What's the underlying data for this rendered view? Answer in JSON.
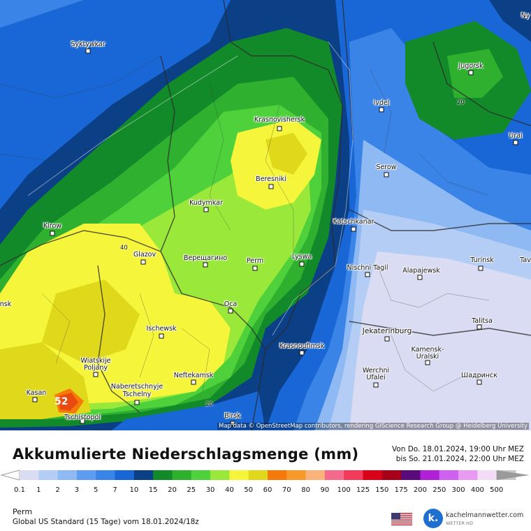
{
  "map": {
    "cities": [
      {
        "name": "Syktywkar"
      },
      {
        "name": "Jugorsk"
      },
      {
        "name": "Ivdel"
      },
      {
        "name": "Krasnovishersk"
      },
      {
        "name": "Urai"
      },
      {
        "name": "Serow"
      },
      {
        "name": "Beresniki"
      },
      {
        "name": "Kudymkar"
      },
      {
        "name": "Katschkanar"
      },
      {
        "name": "Kirow"
      },
      {
        "name": "Glazov"
      },
      {
        "name": "Верещагино"
      },
      {
        "name": "Perm"
      },
      {
        "name": "Lyswa"
      },
      {
        "name": "Nischni Tagil"
      },
      {
        "name": "Alapajewsk"
      },
      {
        "name": "Turinsk"
      },
      {
        "name": "Оса"
      },
      {
        "name": "Talitsa"
      },
      {
        "name": "Ischewsk"
      },
      {
        "name": "Jekaterinburg"
      },
      {
        "name": "Krasnoufimsk"
      },
      {
        "name": "Kamensk-Uralski"
      },
      {
        "name": "Wiatskije Poljany"
      },
      {
        "name": "Neftekamsk"
      },
      {
        "name": "Werchni Ufalei"
      },
      {
        "name": "Шадринск"
      },
      {
        "name": "Naberetschnyje Tschelny"
      },
      {
        "name": "Kasan"
      },
      {
        "name": "Tschistopol"
      },
      {
        "name": "Birsk"
      },
      {
        "name": "Ny"
      },
      {
        "name": "Tav"
      },
      {
        "name": "nsk"
      }
    ],
    "contour_values": [
      "40",
      "20",
      "20"
    ],
    "max_value": "52",
    "credit": "Map data © OpenStreetMap contributors, rendering GIScience Research Group @ Heidelberg University"
  },
  "legend": {
    "title": "Akkumulierte Niederschlagsmenge (mm)",
    "period_from": "Von Do. 18.01.2024, 19:00 Uhr MEZ",
    "period_to": "bis So. 21.01.2024, 22:00 Uhr MEZ",
    "ticks": [
      "0.1",
      "1",
      "2",
      "3",
      "5",
      "7",
      "10",
      "15",
      "20",
      "25",
      "30",
      "40",
      "50",
      "60",
      "70",
      "80",
      "90",
      "100",
      "125",
      "150",
      "175",
      "200",
      "250",
      "300",
      "400",
      "500"
    ],
    "colors": [
      "#d9dcf2",
      "#b4cdf5",
      "#8fb9f2",
      "#5d9cee",
      "#3a84e8",
      "#1967d6",
      "#0b3f86",
      "#128a2a",
      "#2fb12f",
      "#4fd13c",
      "#9ae83a",
      "#f5f53b",
      "#e0d81a",
      "#f57a0a",
      "#f79a2a",
      "#f9b27a",
      "#f56a8a",
      "#f23a5a",
      "#d9001a",
      "#a8001a",
      "#5a0a7a",
      "#b020d9",
      "#d060f0",
      "#e99af2",
      "#f3dcf5",
      "#c9c9c9"
    ],
    "location": "Perm",
    "model": "Global US Standard (15 Tage)  vom  18.01.2024/18z",
    "brand_name": "kachelmannwetter.com",
    "brand_sub": "WETTER HD",
    "brand_letter": "k."
  }
}
